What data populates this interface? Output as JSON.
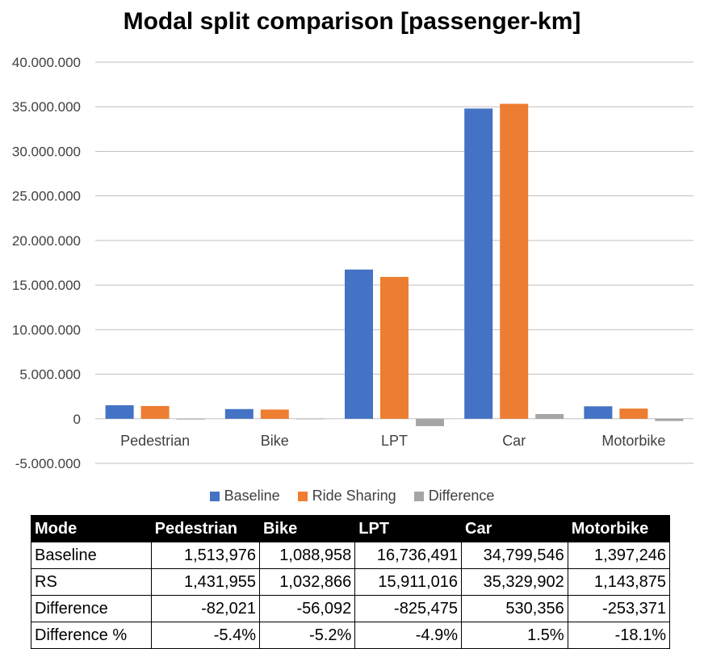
{
  "chart_data": {
    "type": "bar",
    "title": "Modal split comparison [passenger-km]",
    "categories": [
      "Pedestrian",
      "Bike",
      "LPT",
      "Car",
      "Motorbike"
    ],
    "series": [
      {
        "name": "Baseline",
        "color": "#4472C4",
        "values": [
          1513976,
          1088958,
          16736491,
          34799546,
          1397246
        ]
      },
      {
        "name": "Ride Sharing",
        "color": "#ED7D31",
        "values": [
          1431955,
          1032866,
          15911016,
          35329902,
          1143875
        ]
      },
      {
        "name": "Difference",
        "color": "#A5A5A5",
        "values": [
          -82021,
          -56092,
          -825475,
          530356,
          -253371
        ]
      }
    ],
    "ylim": [
      -5000000,
      40000000
    ],
    "yticks": [
      {
        "value": 40000000,
        "label": "40.000.000"
      },
      {
        "value": 35000000,
        "label": "35.000.000"
      },
      {
        "value": 30000000,
        "label": "30.000.000"
      },
      {
        "value": 25000000,
        "label": "25.000.000"
      },
      {
        "value": 20000000,
        "label": "20.000.000"
      },
      {
        "value": 15000000,
        "label": "15.000.000"
      },
      {
        "value": 10000000,
        "label": "10.000.000"
      },
      {
        "value": 5000000,
        "label": "5.000.000"
      },
      {
        "value": 0,
        "label": "0"
      },
      {
        "value": -5000000,
        "label": "-5.000.000"
      }
    ],
    "grid": true,
    "legend": "bottom"
  },
  "table": {
    "headers": [
      "Mode",
      "Pedestrian",
      "Bike",
      "LPT",
      "Car",
      "Motorbike"
    ],
    "rows": [
      {
        "label": "Baseline",
        "cells": [
          "1,513,976",
          "1,088,958",
          "16,736,491",
          "34,799,546",
          "1,397,246"
        ]
      },
      {
        "label": "RS",
        "cells": [
          "1,431,955",
          "1,032,866",
          "15,911,016",
          "35,329,902",
          "1,143,875"
        ]
      },
      {
        "label": "Difference",
        "cells": [
          "-82,021",
          "-56,092",
          "-825,475",
          "530,356",
          "-253,371"
        ]
      },
      {
        "label": "Difference %",
        "cells": [
          "-5.4%",
          "-5.2%",
          "-4.9%",
          "1.5%",
          "-18.1%"
        ]
      }
    ]
  }
}
